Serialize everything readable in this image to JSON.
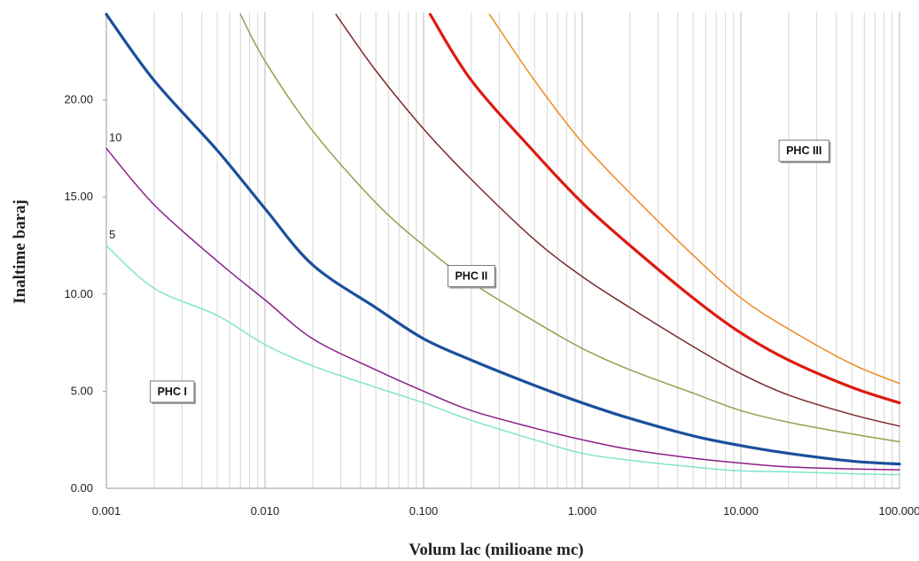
{
  "chart_data": {
    "type": "line",
    "xlabel": "Volum lac (milioane mc)",
    "ylabel": "Inaltime baraj",
    "x_scale": "log",
    "xlim": [
      0.001,
      100
    ],
    "ylim": [
      0,
      24.5
    ],
    "grid": {
      "vertical_minor": true,
      "horizontal": false
    },
    "x_tick_labels": [
      "0.001",
      "0.010",
      "0.100",
      "1.000",
      "10.000",
      "100.000"
    ],
    "x_ticks": [
      0.001,
      0.01,
      0.1,
      1,
      10,
      100
    ],
    "y_tick_labels": [
      "0.00",
      "5.00",
      "10.00",
      "15.00",
      "20.00"
    ],
    "y_ticks": [
      0,
      5,
      10,
      15,
      20
    ],
    "series": [
      {
        "label": "5",
        "color": "#7fe5cc",
        "width": 1.5,
        "x": [
          0.001,
          0.002,
          0.005,
          0.01,
          0.02,
          0.05,
          0.1,
          0.2,
          0.5,
          1,
          2,
          5,
          10,
          20,
          50,
          100
        ],
        "y": [
          12.5,
          10.3,
          8.9,
          7.4,
          6.3,
          5.2,
          4.4,
          3.5,
          2.5,
          1.8,
          1.45,
          1.1,
          0.9,
          0.85,
          0.75,
          0.7
        ]
      },
      {
        "label": "10",
        "color": "#8b1e8b",
        "width": 1.5,
        "x": [
          0.001,
          0.002,
          0.005,
          0.01,
          0.02,
          0.05,
          0.1,
          0.2,
          0.5,
          1,
          2,
          5,
          10,
          20,
          50,
          100
        ],
        "y": [
          17.5,
          14.6,
          11.7,
          9.7,
          7.7,
          6.1,
          5.0,
          4.0,
          3.1,
          2.5,
          2.0,
          1.55,
          1.3,
          1.1,
          1.0,
          0.95
        ]
      },
      {
        "label": "",
        "color": "#1a4f9c",
        "width": 3.2,
        "x": [
          0.001,
          0.002,
          0.005,
          0.01,
          0.02,
          0.05,
          0.1,
          0.2,
          0.5,
          1,
          2,
          5,
          10,
          20,
          50,
          100
        ],
        "y": [
          24.4,
          21.0,
          17.4,
          14.4,
          11.5,
          9.3,
          7.7,
          6.6,
          5.3,
          4.4,
          3.6,
          2.7,
          2.2,
          1.8,
          1.4,
          1.25
        ]
      },
      {
        "label": "",
        "color": "#9c9c50",
        "width": 1.5,
        "x": [
          0.007,
          0.01,
          0.02,
          0.05,
          0.1,
          0.2,
          0.5,
          1,
          2,
          5,
          10,
          20,
          50,
          100
        ],
        "y": [
          24.4,
          22.0,
          18.4,
          14.7,
          12.5,
          10.6,
          8.6,
          7.2,
          6.1,
          4.9,
          4.0,
          3.4,
          2.8,
          2.4
        ]
      },
      {
        "label": "",
        "color": "#7a2a2a",
        "width": 1.5,
        "x": [
          0.028,
          0.05,
          0.1,
          0.2,
          0.5,
          1,
          2,
          5,
          10,
          20,
          50,
          100
        ],
        "y": [
          24.4,
          21.5,
          18.5,
          15.9,
          12.8,
          10.9,
          9.3,
          7.3,
          5.9,
          4.8,
          3.8,
          3.2
        ]
      },
      {
        "label": "",
        "color": "#dd1a10",
        "width": 3.2,
        "x": [
          0.11,
          0.2,
          0.5,
          1,
          2,
          5,
          10,
          20,
          50,
          100
        ],
        "y": [
          24.4,
          21.0,
          17.3,
          14.7,
          12.5,
          9.8,
          8.0,
          6.6,
          5.2,
          4.4
        ]
      },
      {
        "label": "",
        "color": "#ee8a22",
        "width": 1.5,
        "x": [
          0.26,
          0.5,
          1,
          2,
          5,
          10,
          20,
          50,
          100
        ],
        "y": [
          24.4,
          21.0,
          17.8,
          15.2,
          12.0,
          9.8,
          8.2,
          6.4,
          5.4
        ]
      }
    ],
    "annotations": [
      {
        "text": "PHC I",
        "x": 0.0026,
        "y": 5.0
      },
      {
        "text": "PHC II",
        "x": 0.2,
        "y": 10.95
      },
      {
        "text": "PHC III",
        "x": 25,
        "y": 17.4
      }
    ]
  }
}
